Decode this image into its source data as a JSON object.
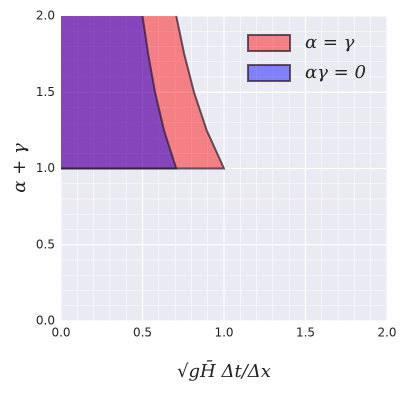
{
  "chart_data": {
    "type": "area",
    "xlabel": "√gH̄ Δt/Δx",
    "ylabel": "α + γ",
    "series": [
      {
        "name": "α = γ",
        "color": "#ff0000",
        "y": [
          1,
          1.25,
          1.5,
          1.75,
          2
        ],
        "x": [
          1.0,
          0.894,
          0.816,
          0.756,
          0.707
        ]
      },
      {
        "name": "αγ = 0",
        "color": "#0000ff",
        "y": [
          1,
          1.25,
          1.5,
          1.75,
          2
        ],
        "x": [
          0.707,
          0.632,
          0.577,
          0.535,
          0.5
        ]
      }
    ],
    "xlim": [
      0,
      2
    ],
    "ylim": [
      0,
      2
    ],
    "xticks": [
      {
        "value": 0,
        "label": "0.0"
      },
      0.5,
      {
        "value": 1,
        "label": "1.0"
      },
      1.5,
      {
        "value": 2,
        "label": "2.0"
      }
    ],
    "yticks": [
      {
        "value": 0,
        "label": "0.0"
      },
      0.5,
      {
        "value": 1,
        "label": "1.0"
      },
      1.5,
      {
        "value": 2,
        "label": "2.0"
      }
    ],
    "grid": true,
    "legend": "upper right"
  }
}
